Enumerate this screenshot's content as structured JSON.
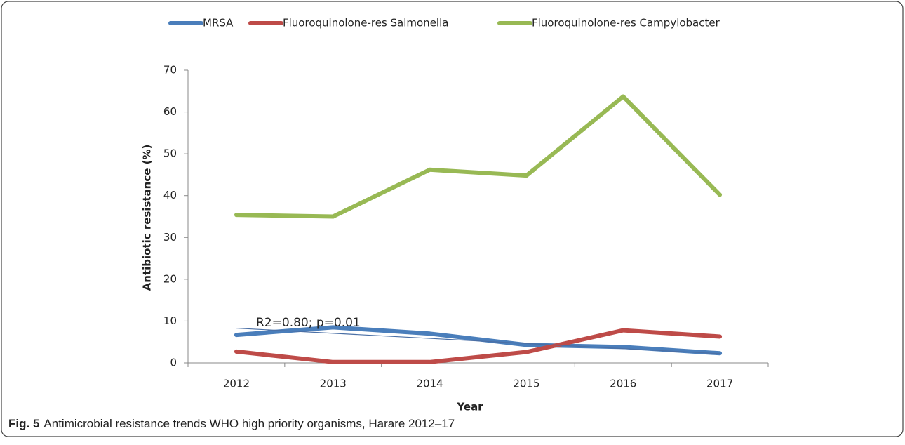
{
  "chart_data": {
    "type": "line",
    "categories": [
      "2012",
      "2013",
      "2014",
      "2015",
      "2016",
      "2017"
    ],
    "series": [
      {
        "name": "MRSA",
        "color": "#4a7ebb",
        "values": [
          6.7,
          8.5,
          7.0,
          4.3,
          3.8,
          2.3
        ]
      },
      {
        "name": "Fluoroquinolone-res Salmonella",
        "color": "#be4b48",
        "values": [
          2.7,
          0.2,
          0.2,
          2.6,
          7.8,
          6.3
        ]
      },
      {
        "name": "Fluoroquinolone-res Campylobacter",
        "color": "#98b954",
        "values": [
          35.4,
          35.0,
          46.2,
          44.8,
          63.7,
          40.2
        ]
      }
    ],
    "trendline": {
      "values": [
        8.3,
        2.2
      ],
      "color": "#4a6fa5"
    },
    "annotation": "R2=0.80; p=0.01",
    "ylim": [
      0,
      70
    ],
    "yticks": [
      0,
      10,
      20,
      30,
      40,
      50,
      60,
      70
    ],
    "ylabel": "Antibiotic resistance (%)",
    "xlabel": "Year",
    "legend": "top",
    "caption": {
      "label": "Fig. 5",
      "text": "Antimicrobial resistance trends WHO high priority organisms, Harare 2012–17"
    }
  }
}
